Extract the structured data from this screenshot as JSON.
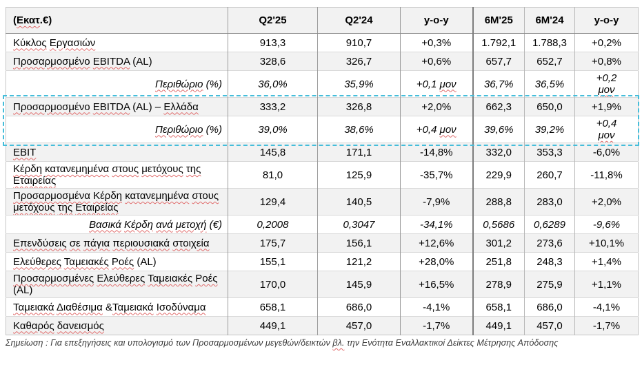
{
  "table": {
    "unit_label": "(Εκατ.€)",
    "columns": [
      "Q2'25",
      "Q2'24",
      "y-o-y",
      "6M'25",
      "6M'24",
      "y-o-y"
    ],
    "rows": [
      {
        "label": "Κύκλος Εργασιών",
        "values": [
          "913,3",
          "910,7",
          "+0,3%",
          "1.792,1",
          "1.788,3",
          "+0,2%"
        ],
        "style": "normal",
        "shaded": false,
        "highlighted": false
      },
      {
        "label": "Προσαρμοσμένο EBITDA (AL)",
        "values": [
          "328,6",
          "326,7",
          "+0,6%",
          "657,7",
          "652,7",
          "+0,8%"
        ],
        "style": "normal",
        "shaded": true,
        "highlighted": false
      },
      {
        "label": "Περιθώριο (%)",
        "values": [
          "36,0%",
          "35,9%",
          "+0,1 μον",
          "36,7%",
          "36,5%",
          "+0,2 μον"
        ],
        "style": "margin",
        "shaded": false,
        "highlighted": false
      },
      {
        "label": "Προσαρμοσμένο EBITDA (AL) – Ελλάδα",
        "values": [
          "333,2",
          "326,8",
          "+2,0%",
          "662,3",
          "650,0",
          "+1,9%"
        ],
        "style": "normal",
        "shaded": true,
        "highlighted": true
      },
      {
        "label": "Περιθώριο (%)",
        "values": [
          "39,0%",
          "38,6%",
          "+0,4 μον",
          "39,6%",
          "39,2%",
          "+0,4 μον"
        ],
        "style": "margin",
        "shaded": false,
        "highlighted": true
      },
      {
        "label": "EBIT",
        "values": [
          "145,8",
          "171,1",
          "-14,8%",
          "332,0",
          "353,3",
          "-6,0%"
        ],
        "style": "normal",
        "shaded": true,
        "highlighted": false
      },
      {
        "label": "Κέρδη κατανεμημένα στους μετόχους της Εταιρείας",
        "values": [
          "81,0",
          "125,9",
          "-35,7%",
          "229,9",
          "260,7",
          "-11,8%"
        ],
        "style": "normal",
        "shaded": false,
        "highlighted": false
      },
      {
        "label": "Προσαρμοσμένα Κέρδη κατανεμημένα στους μετόχους της Εταιρείας",
        "values": [
          "129,4",
          "140,5",
          "-7,9%",
          "288,8",
          "283,0",
          "+2,0%"
        ],
        "style": "normal",
        "shaded": true,
        "highlighted": false
      },
      {
        "label": "Βασικά Κέρδη ανά μετοχή (€)",
        "values": [
          "0,2008",
          "0,3047",
          "-34,1%",
          "0,5686",
          "0,6289",
          "-9,6%"
        ],
        "style": "margin",
        "shaded": false,
        "highlighted": false
      },
      {
        "label": "Επενδύσεις σε πάγια περιουσιακά στοιχεία",
        "values": [
          "175,7",
          "156,1",
          "+12,6%",
          "301,2",
          "273,6",
          "+10,1%"
        ],
        "style": "normal",
        "shaded": true,
        "highlighted": false
      },
      {
        "label": "Ελεύθερες Ταμειακές Ροές (AL)",
        "values": [
          "155,1",
          "121,2",
          "+28,0%",
          "251,8",
          "248,3",
          "+1,4%"
        ],
        "style": "normal",
        "shaded": false,
        "highlighted": false
      },
      {
        "label": "Προσαρμοσμένες Ελεύθερες Ταμειακές Ροές (AL)",
        "values": [
          "170,0",
          "145,9",
          "+16,5%",
          "278,9",
          "275,9",
          "+1,1%"
        ],
        "style": "normal",
        "shaded": true,
        "highlighted": false
      },
      {
        "label": "Ταμειακά Διαθέσιμα &Ταμειακά Ισοδύναμα",
        "values": [
          "658,1",
          "686,0",
          "-4,1%",
          "658,1",
          "686,0",
          "-4,1%"
        ],
        "style": "normal",
        "shaded": false,
        "highlighted": false
      },
      {
        "label": "Καθαρός δανεισμός",
        "values": [
          "449,1",
          "457,0",
          "-1,7%",
          "449,1",
          "457,0",
          "-1,7%"
        ],
        "style": "normal",
        "shaded": true,
        "highlighted": false
      }
    ]
  },
  "footnote": {
    "prefix": "Σημείωση : Για επεξηγήσεις και υπολογισμό των Προσαρμοσμένων μεγεθών/δεικτών ",
    "flagged": "βλ.",
    "suffix": " την Ενότητα Εναλλακτικοί Δείκτες Μέτρησης Απόδοσης"
  },
  "colors": {
    "highlight_border": "#44bdda",
    "row_shade": "#f2f2f2",
    "spellcheck_underline": "#e06c6c"
  }
}
